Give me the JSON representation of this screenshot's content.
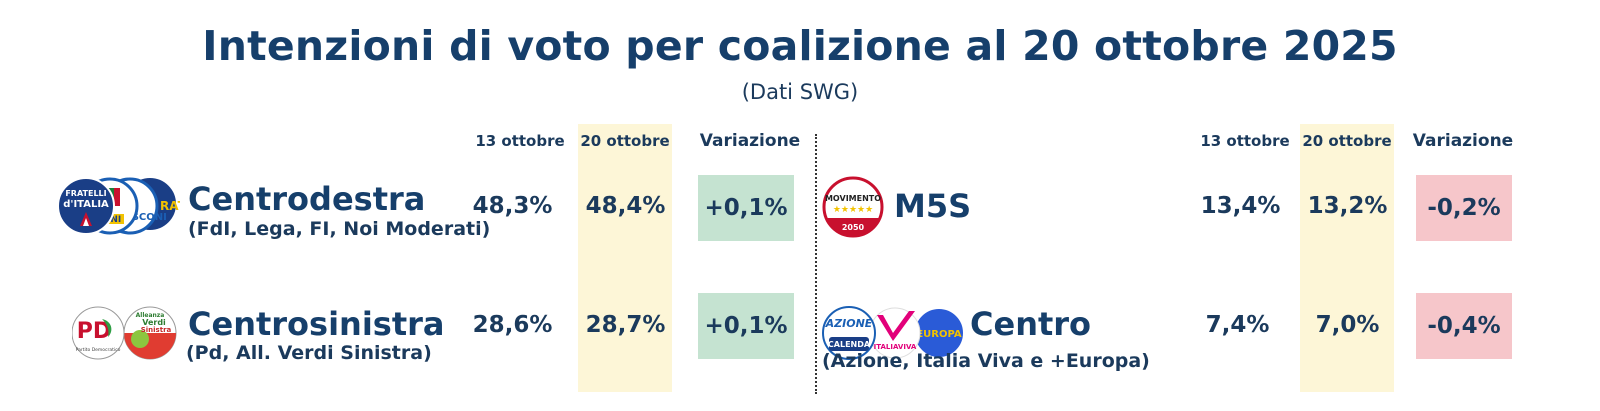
{
  "title": "Intenzioni di voto per coalizione al 20 ottobre 2025",
  "subtitle": "(Dati SWG)",
  "columns": {
    "prev": "13 ottobre",
    "curr": "20 ottobre",
    "change": "Variazione"
  },
  "colors": {
    "highlight": "#fdf6d7",
    "positive": "#c5e3d1",
    "negative": "#f6c6ca",
    "text": "#163f6b"
  },
  "chart_data": {
    "type": "table",
    "columns": [
      "13 ottobre",
      "20 ottobre",
      "Variazione"
    ],
    "rows": [
      {
        "name": "Centrodestra",
        "detail": "(FdI, Lega, FI, Noi Moderati)",
        "prev": "48,3%",
        "curr": "48,4%",
        "change": "+0,1%",
        "prev_value": 48.3,
        "curr_value": 48.4,
        "change_value": 0.1,
        "logos": [
          "Fratelli d'Italia",
          "Lega",
          "Forza Italia",
          "Noi Moderati"
        ]
      },
      {
        "name": "Centrosinistra",
        "detail": "(Pd, All. Verdi Sinistra)",
        "prev": "28,6%",
        "curr": "28,7%",
        "change": "+0,1%",
        "prev_value": 28.6,
        "curr_value": 28.7,
        "change_value": 0.1,
        "logos": [
          "PD",
          "Alleanza Verdi Sinistra"
        ]
      },
      {
        "name": "M5S",
        "detail": "",
        "prev": "13,4%",
        "curr": "13,2%",
        "change": "-0,2%",
        "prev_value": 13.4,
        "curr_value": 13.2,
        "change_value": -0.2,
        "logos": [
          "Movimento 5 Stelle"
        ]
      },
      {
        "name": "Centro",
        "detail": "(Azione, Italia Viva e +Europa)",
        "prev": "7,4%",
        "curr": "7,0%",
        "change": "-0,4%",
        "prev_value": 7.4,
        "curr_value": 7.0,
        "change_value": -0.4,
        "logos": [
          "Azione",
          "Italia Viva",
          "+Europa"
        ]
      }
    ]
  },
  "logo_text": {
    "fdi": [
      "FRATELLI",
      "d'ITALIA"
    ],
    "pd": "PD",
    "pd_caption": "Partito Democratico",
    "avs": [
      "Alleanza",
      "Verdi",
      "Sinistra"
    ],
    "m5s": "MOVIMENTO",
    "m5s_stars": "★★★★★",
    "m5s_year": "2050",
    "azione": "AZIONE",
    "calenda": "CALENDA",
    "italiaviva": "ITALIAVIVA",
    "europa": "EUROPA"
  }
}
